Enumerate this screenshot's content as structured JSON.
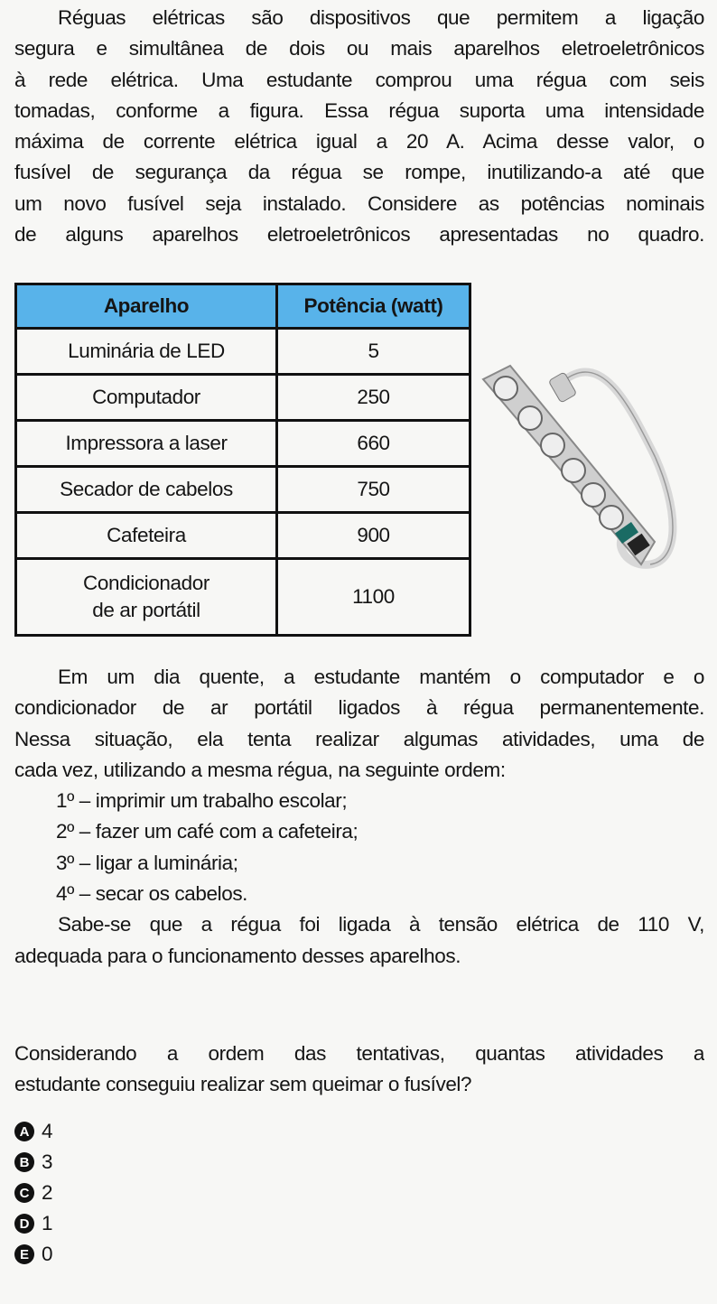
{
  "intro": [
    "Réguas elétricas são dispositivos que permitem a ligação",
    "segura e simultânea de dois ou mais aparelhos eletroeletrônicos",
    "à rede elétrica. Uma estudante comprou uma régua com seis",
    "tomadas, conforme a figura. Essa régua suporta uma intensidade",
    "máxima de corrente elétrica igual a 20 A. Acima desse valor, o",
    "fusível de segurança da régua se rompe, inutilizando-a até que",
    "um novo fusível seja instalado. Considere as potências nominais",
    "de alguns aparelhos eletroeletrônicos apresentadas no quadro."
  ],
  "table": {
    "headers": [
      "Aparelho",
      "Potência (watt)"
    ],
    "header_color": "#58b3ea",
    "rows": [
      [
        "Luminária de LED",
        "5"
      ],
      [
        "Computador",
        "250"
      ],
      [
        "Impressora a laser",
        "660"
      ],
      [
        "Secador de cabelos",
        "750"
      ],
      [
        "Cafeteira",
        "900"
      ],
      [
        "Condicionador de ar portátil",
        "1100"
      ]
    ],
    "last_row_lines": [
      "Condicionador",
      "de ar portátil"
    ]
  },
  "figure": {
    "icon": "power-strip-six-outlets"
  },
  "situation": [
    "Em um dia quente, a estudante mantém o computador e o",
    "condicionador de ar portátil ligados à régua permanentemente.",
    "Nessa situação, ela tenta realizar algumas atividades, uma de",
    "cada vez, utilizando a mesma régua, na seguinte ordem:"
  ],
  "activities": [
    "1º – imprimir um trabalho escolar;",
    "2º – fazer um café com a cafeteira;",
    "3º – ligar a luminária;",
    "4º – secar os cabelos."
  ],
  "voltage": [
    "Sabe-se que a régua foi ligada à tensão elétrica de 110 V,",
    "adequada para o funcionamento desses aparelhos."
  ],
  "question": [
    "Considerando a ordem das tentativas, quantas atividades a",
    "estudante conseguiu realizar sem queimar o fusível?"
  ],
  "options": [
    {
      "letter": "A",
      "text": "4"
    },
    {
      "letter": "B",
      "text": "3"
    },
    {
      "letter": "C",
      "text": "2"
    },
    {
      "letter": "D",
      "text": "1"
    },
    {
      "letter": "E",
      "text": "0"
    }
  ]
}
